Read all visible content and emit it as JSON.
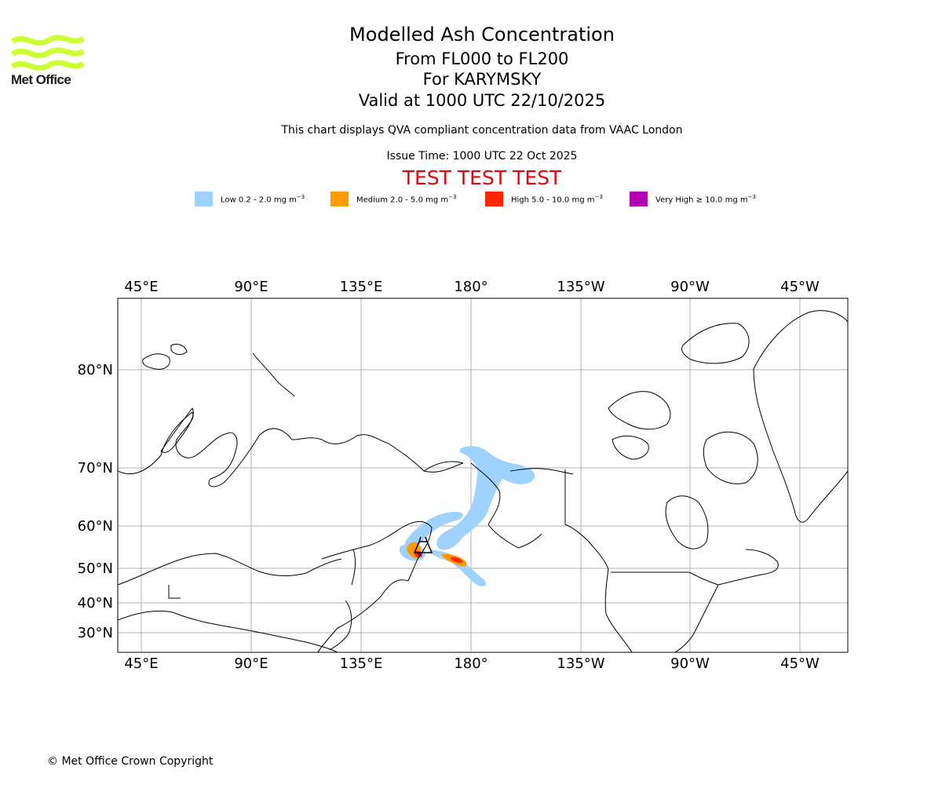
{
  "brand": {
    "name": "Met Office",
    "logo_icon": "met-office-waves-logo",
    "logo_color": "#ccff33"
  },
  "title": "Modelled Ash Concentration",
  "subtitle_levels": "From FL000 to FL200",
  "subtitle_volcano": "For KARYMSKY",
  "subtitle_valid": "Valid at 1000 UTC 22/10/2025",
  "note": "This chart displays QVA compliant concentration data from VAAC London",
  "issue_time": "Issue Time: 1000 UTC 22 Oct 2025",
  "test_banner": "TEST TEST TEST",
  "test_color": "#e8000b",
  "legend": [
    {
      "label": "Low 0.2 - 2.0 mg m",
      "color": "#a0d2ff"
    },
    {
      "label": "Medium 2.0 - 5.0 mg m",
      "color": "#ff9a00"
    },
    {
      "label": "High 5.0 - 10.0 mg m",
      "color": "#ff2600"
    },
    {
      "label": "Very High ≥ 10.0 mg m",
      "color": "#b400b4"
    }
  ],
  "legend_unit_exponent": "−3",
  "map": {
    "projection": "equirectangular",
    "lon_labels": [
      "45°E",
      "90°E",
      "135°E",
      "180°",
      "135°W",
      "90°W",
      "45°W"
    ],
    "lat_labels": [
      "80°N",
      "70°N",
      "60°N",
      "50°N",
      "40°N",
      "30°N"
    ],
    "grid": true,
    "volcano": "KARYMSKY",
    "volcano_icon": "volcano-source-marker"
  },
  "footer": "© Met Office Crown Copyright"
}
